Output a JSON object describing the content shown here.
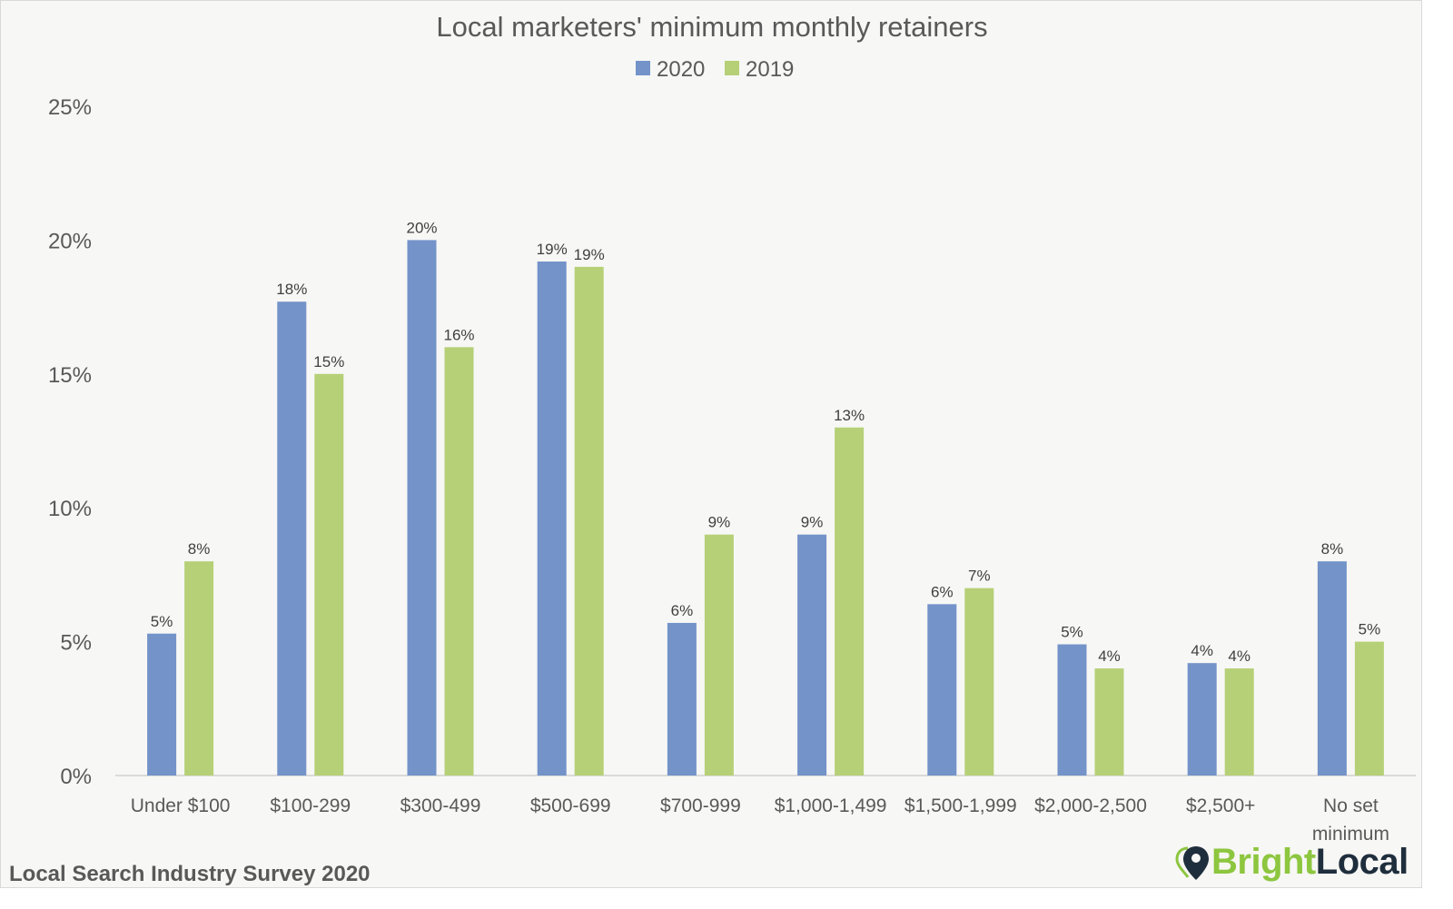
{
  "chart_data": {
    "type": "bar",
    "title": "Local marketers' minimum monthly retainers",
    "categories": [
      "Under $100",
      "$100-299",
      "$300-499",
      "$500-699",
      "$700-999",
      "$1,000-1,499",
      "$1,500-1,999",
      "$2,000-2,500",
      "$2,500+",
      "No set minimum"
    ],
    "series": [
      {
        "name": "2020",
        "color": "#7393c9",
        "values": [
          5.3,
          17.7,
          20.0,
          19.2,
          5.7,
          9.0,
          6.4,
          4.9,
          4.2,
          8.0
        ],
        "labels": [
          "5%",
          "18%",
          "20%",
          "19%",
          "6%",
          "9%",
          "6%",
          "5%",
          "4%",
          "8%"
        ]
      },
      {
        "name": "2019",
        "color": "#b6d077",
        "values": [
          8.0,
          15.0,
          16.0,
          19.0,
          9.0,
          13.0,
          7.0,
          4.0,
          4.0,
          5.0
        ],
        "labels": [
          "8%",
          "15%",
          "16%",
          "19%",
          "9%",
          "13%",
          "7%",
          "4%",
          "4%",
          "5%"
        ]
      }
    ],
    "ylim": [
      0,
      25
    ],
    "yticks": [
      0,
      5,
      10,
      15,
      20,
      25
    ],
    "ytick_labels": [
      "0%",
      "5%",
      "10%",
      "15%",
      "20%",
      "25%"
    ],
    "grid": false,
    "legend_position": "top-center",
    "xlabel": "",
    "ylabel": ""
  },
  "footer": {
    "source": "Local Search Industry Survey 2020",
    "logo_bright": "Bright",
    "logo_local": "Local",
    "logo_icon": "map-pin-icon"
  }
}
